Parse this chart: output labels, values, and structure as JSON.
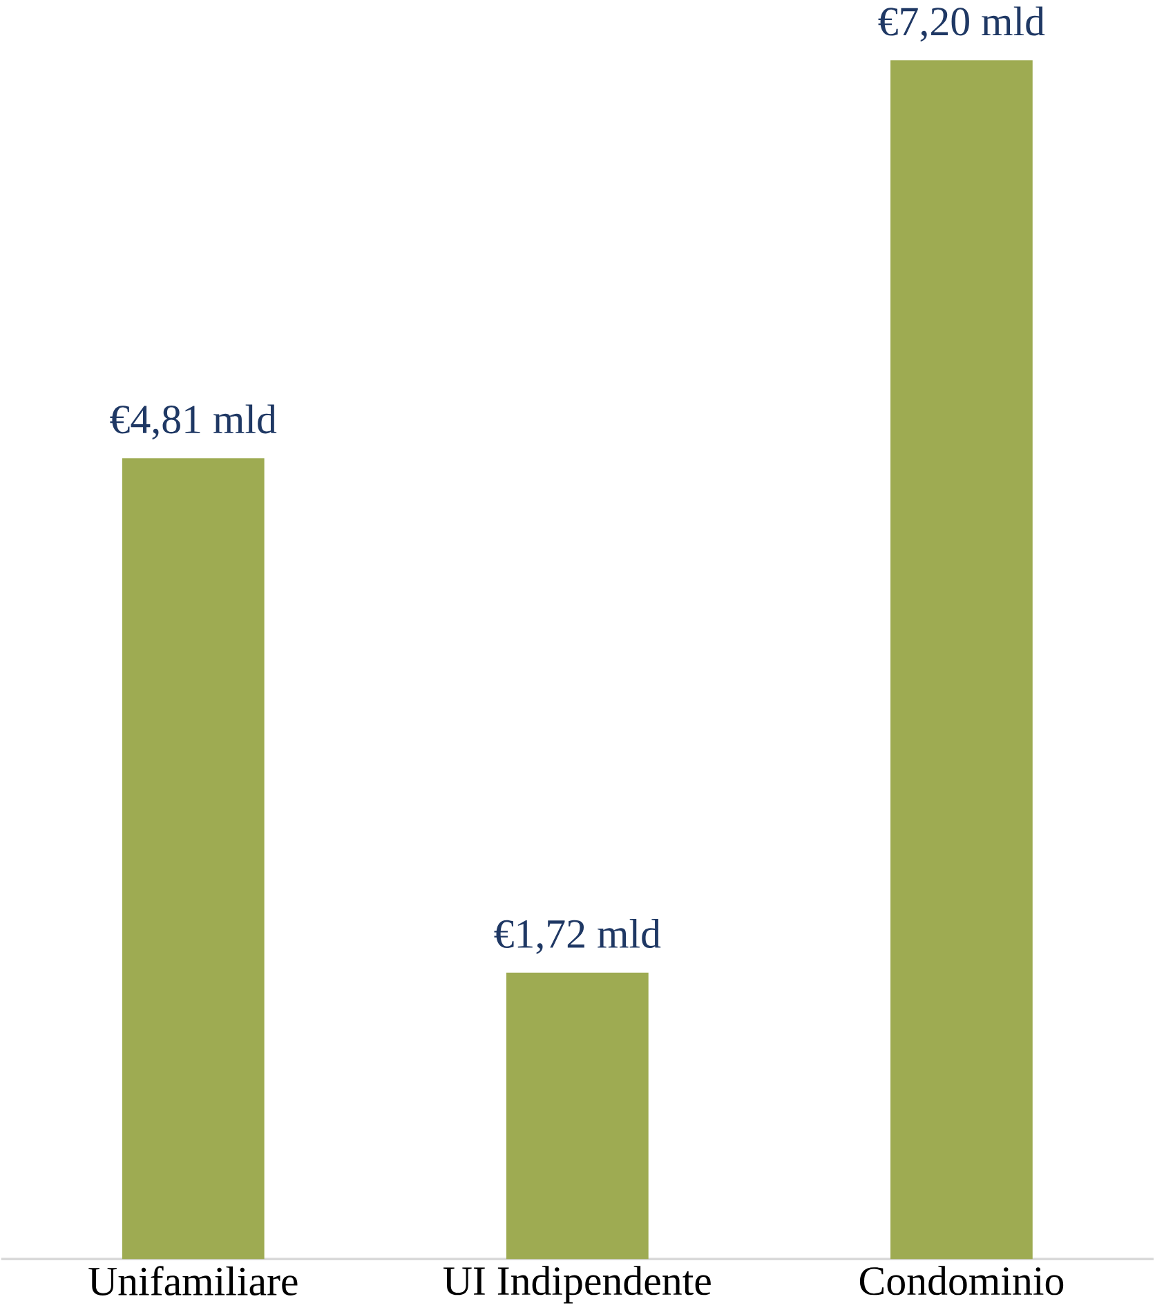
{
  "chart_data": {
    "type": "bar",
    "categories": [
      "Unifamiliare",
      "UI Indipendente",
      "Condominio"
    ],
    "values": [
      4.81,
      1.72,
      7.2
    ],
    "value_labels": [
      "€4,81 mld",
      "€1,72 mld",
      "€7,20 mld"
    ],
    "color": "#9eab52"
  }
}
